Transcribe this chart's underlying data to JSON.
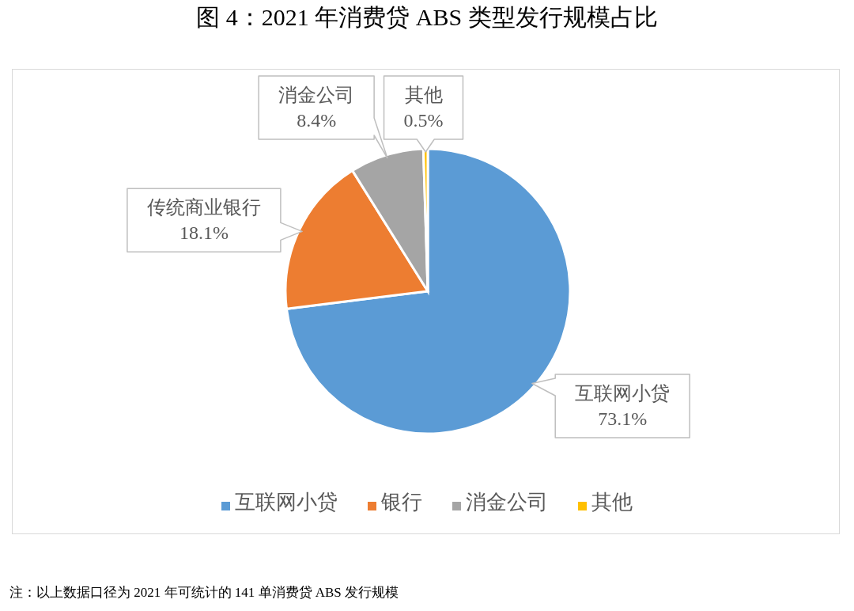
{
  "chart_data": {
    "type": "pie",
    "title": "图 4：2021 年消费贷 ABS 类型发行规模占比",
    "categories": [
      "互联网小贷",
      "银行",
      "消金公司",
      "其他"
    ],
    "values": [
      73.1,
      18.1,
      8.4,
      0.5
    ],
    "colors": [
      "#5b9bd5",
      "#ed7d31",
      "#a5a5a5",
      "#ffc000"
    ],
    "value_labels": [
      "互联网小贷\n73.1%",
      "传统商业银行\n18.1%",
      "消金公司\n8.4%",
      "其他\n0.5%"
    ],
    "legend": "bottom",
    "annotations": [
      "注：以上数据口径为 2021 年可统计的 141 单消费贷 ABS 发行规模"
    ]
  }
}
